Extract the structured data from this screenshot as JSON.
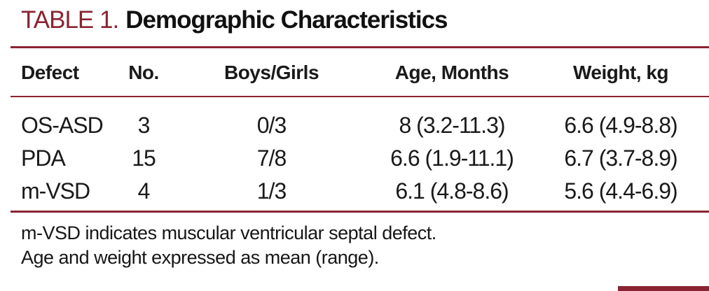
{
  "page": {
    "background": "#ffffff",
    "accent_color": "#8a2433",
    "text_color": "#1a1a1a"
  },
  "title": {
    "label": "TABLE 1.",
    "text": "Demographic Characteristics"
  },
  "table": {
    "headers": {
      "defect": "Defect",
      "no": "No.",
      "boys_girls": "Boys/Girls",
      "age_months": "Age, Months",
      "weight_kg": "Weight, kg"
    },
    "rows": [
      {
        "defect": "OS-ASD",
        "no": "3",
        "boys_girls": "0/3",
        "age_months": "8 (3.2-11.3)",
        "weight_kg": "6.6 (4.9-8.8)"
      },
      {
        "defect": "PDA",
        "no": "15",
        "boys_girls": "7/8",
        "age_months": "6.6 (1.9-11.1)",
        "weight_kg": "6.7 (3.7-8.9)"
      },
      {
        "defect": "m-VSD",
        "no": "4",
        "boys_girls": "1/3",
        "age_months": "6.1 (4.8-8.6)",
        "weight_kg": "5.6 (4.4-6.9)"
      }
    ]
  },
  "footnotes": [
    "m-VSD indicates muscular ventricular septal defect.",
    "Age and weight expressed as mean (range)."
  ]
}
